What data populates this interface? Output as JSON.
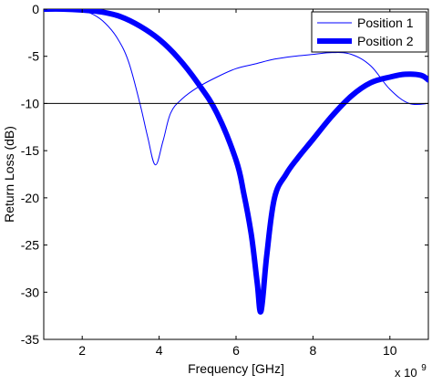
{
  "chart_data": {
    "type": "line",
    "title": "",
    "xlabel": "Frequency [GHz]",
    "ylabel": "Return Loss (dB)",
    "x_multiplier_label": "x 10",
    "x_multiplier_exponent": "9",
    "xlim": [
      1,
      11
    ],
    "ylim": [
      -35,
      0
    ],
    "x_tick_values": [
      2,
      4,
      6,
      8,
      10
    ],
    "x_tick_labels": [
      "2",
      "4",
      "6",
      "8",
      "10"
    ],
    "y_tick_values": [
      0,
      -5,
      -10,
      -15,
      -20,
      -25,
      -30,
      -35
    ],
    "y_tick_labels": [
      "0",
      "-5",
      "-10",
      "-15",
      "-20",
      "-25",
      "-30",
      "-35"
    ],
    "reference_line": {
      "y": -10,
      "color": "#000000"
    },
    "grid": false,
    "legend_position": "top-right",
    "series": [
      {
        "name": "Position 1",
        "color": "#0000ff",
        "line_style": "thin",
        "x": [
          1,
          1.5,
          2,
          2.3,
          2.6,
          2.9,
          3.2,
          3.5,
          3.7,
          3.9,
          4.1,
          4.3,
          4.6,
          5,
          5.5,
          6,
          6.5,
          7,
          7.5,
          8,
          8.5,
          9,
          9.5,
          10,
          10.5,
          11
        ],
        "y": [
          0,
          -0.05,
          -0.2,
          -0.6,
          -1.5,
          -3,
          -5.5,
          -10,
          -13.5,
          -16.5,
          -14,
          -11,
          -9.5,
          -8.3,
          -7.2,
          -6.3,
          -5.8,
          -5.3,
          -5,
          -4.8,
          -4.6,
          -4.8,
          -6,
          -8.5,
          -10,
          -10
        ]
      },
      {
        "name": "Position 2",
        "color": "#0000ff",
        "line_style": "thick",
        "x": [
          1,
          1.5,
          2,
          2.5,
          3,
          3.5,
          4,
          4.5,
          5,
          5.5,
          6,
          6.2,
          6.4,
          6.55,
          6.65,
          6.8,
          7,
          7.3,
          7.6,
          8,
          8.5,
          9,
          9.5,
          10,
          10.4,
          10.8,
          11
        ],
        "y": [
          0,
          0,
          -0.1,
          -0.3,
          -0.8,
          -1.8,
          -3.2,
          -5.2,
          -7.8,
          -11,
          -16,
          -19.5,
          -24,
          -29,
          -32,
          -26,
          -20,
          -17.5,
          -15.8,
          -13.8,
          -11.3,
          -9.2,
          -7.8,
          -7.2,
          -6.9,
          -7,
          -7.5
        ]
      }
    ]
  }
}
